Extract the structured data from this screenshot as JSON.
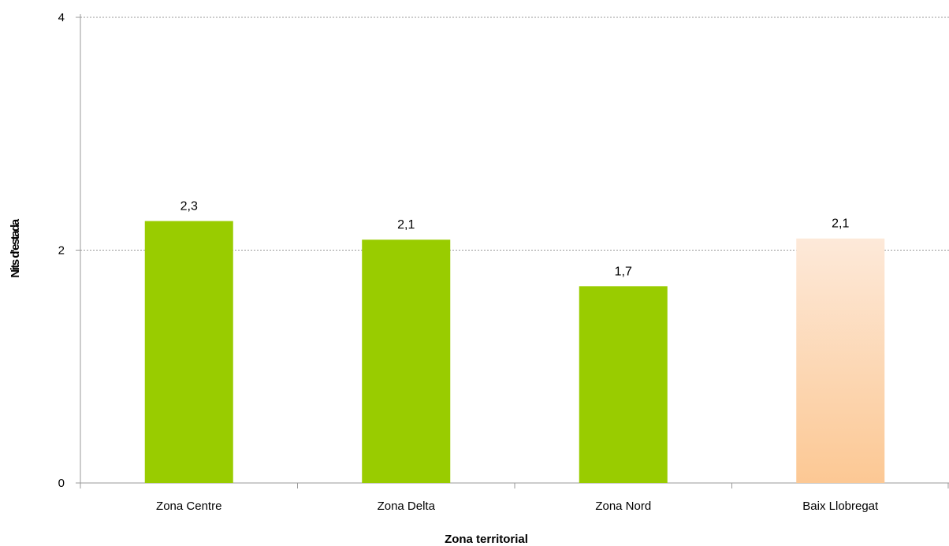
{
  "chart_data": {
    "type": "bar",
    "title": "",
    "xlabel": "Zona territorial",
    "ylabel": "Nits d'estada",
    "categories": [
      "Zona Centre",
      "Zona Delta",
      "Zona Nord",
      "Baix Llobregat"
    ],
    "values": [
      2.25,
      2.09,
      1.69,
      2.1
    ],
    "data_labels": [
      "2,3",
      "2,1",
      "1,7",
      "2,1"
    ],
    "ylim": [
      0,
      4
    ],
    "yticks": [
      0,
      2,
      4
    ],
    "ytick_labels": [
      "0",
      "2",
      "4"
    ],
    "grid": true,
    "legend": "none",
    "colors": {
      "bar": "#99cc00",
      "highlight_top": "#fde9d9",
      "highlight_bottom": "#fcc894",
      "grid": "#999999",
      "axis": "#999999"
    },
    "highlight_category": "Baix Llobregat"
  }
}
